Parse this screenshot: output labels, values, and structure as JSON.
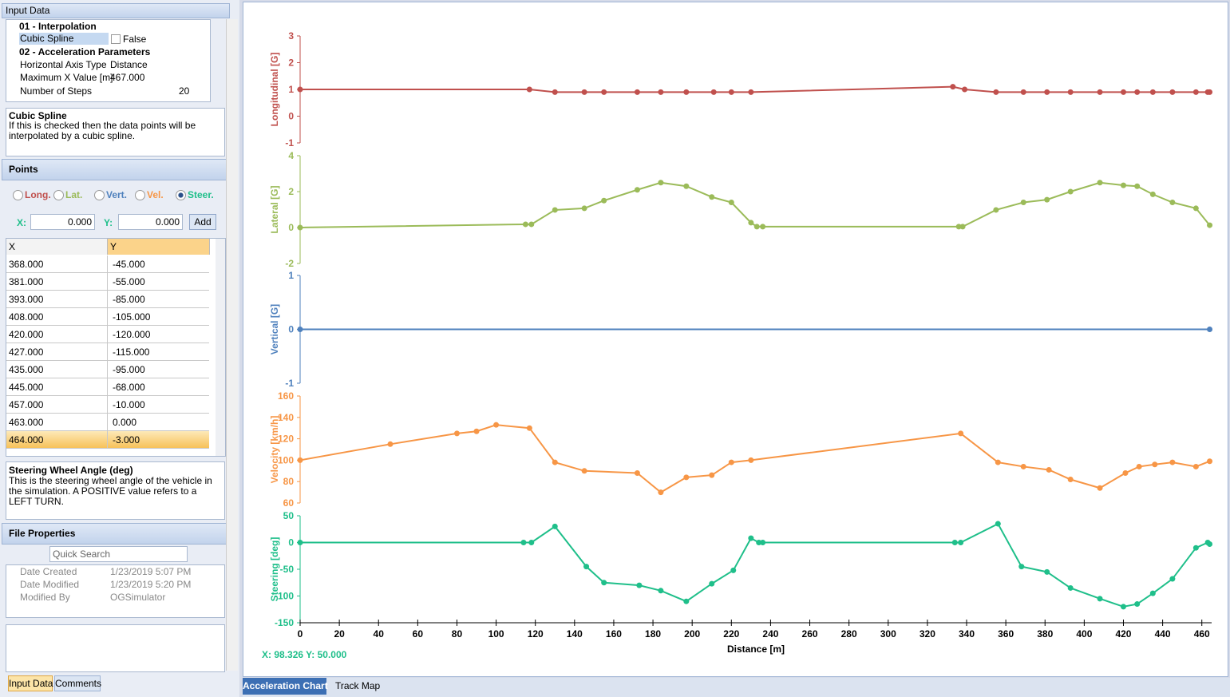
{
  "panel": {
    "title": "Input Data",
    "properties": {
      "section1": "01 - Interpolation",
      "cubic_label": "Cubic Spline",
      "cubic_value": "False",
      "section2": "02 - Acceleration Parameters",
      "axis_type_label": "Horizontal Axis Type",
      "axis_type_value": "Distance",
      "max_x_label": "Maximum X Value [m]",
      "max_x_value": "467.000",
      "steps_label": "Number of Steps",
      "steps_value": "20"
    },
    "desc1": {
      "title": "Cubic Spline",
      "text": "If this is checked then the data points will be interpolated by a cubic spline."
    },
    "points": {
      "title": "Points",
      "options": [
        "Long.",
        "Lat.",
        "Vert.",
        "Vel.",
        "Steer."
      ],
      "x_label": "X:",
      "x_value": "0.000",
      "y_label": "Y:",
      "y_value": "0.000",
      "add": "Add",
      "columns": [
        "X",
        "Y"
      ],
      "rows": [
        [
          "368.000",
          "-45.000"
        ],
        [
          "381.000",
          "-55.000"
        ],
        [
          "393.000",
          "-85.000"
        ],
        [
          "408.000",
          "-105.000"
        ],
        [
          "420.000",
          "-120.000"
        ],
        [
          "427.000",
          "-115.000"
        ],
        [
          "435.000",
          "-95.000"
        ],
        [
          "445.000",
          "-68.000"
        ],
        [
          "457.000",
          "-10.000"
        ],
        [
          "463.000",
          "0.000"
        ],
        [
          "464.000",
          "-3.000"
        ]
      ]
    },
    "desc2": {
      "title": "Steering Wheel Angle (deg)",
      "text": "This is the steering wheel angle of the vehicle in the simulation. A POSITIVE value refers to a LEFT TURN."
    },
    "file": {
      "title": "File Properties",
      "search": "Quick Search",
      "rows": [
        [
          "Date Created",
          "1/23/2019 5:07 PM"
        ],
        [
          "Date Modified",
          "1/23/2019 5:20 PM"
        ],
        [
          "Modified By",
          "OGSimulator"
        ]
      ]
    },
    "tabs": [
      "Input Data",
      "Comments"
    ]
  },
  "cursor_readout": "X: 98.326 Y: 50.000",
  "chart_tabs": [
    "Acceleration Chart",
    "Track Map"
  ],
  "chart_data": [
    {
      "type": "line",
      "y_label": "Longitudinal [G]",
      "color": "#c0504d",
      "ylim": [
        -1,
        3
      ],
      "yticks": [
        -1,
        0,
        1,
        2,
        3
      ],
      "x": [
        0,
        117,
        130,
        145,
        155,
        172,
        184,
        197,
        211,
        220,
        230,
        333,
        339,
        355,
        369,
        381,
        393,
        408,
        420,
        427,
        435,
        445,
        457,
        463,
        464
      ],
      "values": [
        1,
        1,
        0.9,
        0.9,
        0.9,
        0.9,
        0.9,
        0.9,
        0.9,
        0.9,
        0.9,
        1.1,
        1.0,
        0.9,
        0.9,
        0.9,
        0.9,
        0.9,
        0.9,
        0.9,
        0.9,
        0.9,
        0.9,
        0.9,
        0.9
      ]
    },
    {
      "type": "line",
      "y_label": "Lateral [G]",
      "color": "#9bbb59",
      "ylim": [
        -2,
        4
      ],
      "yticks": [
        -2,
        0,
        2,
        4
      ],
      "x": [
        0,
        115,
        118,
        130,
        145,
        155,
        172,
        184,
        197,
        210,
        220,
        230,
        233,
        236,
        336,
        338,
        355,
        369,
        381,
        393,
        408,
        420,
        427,
        435,
        445,
        457,
        464
      ],
      "values": [
        0,
        0.18,
        0.18,
        0.98,
        1.07,
        1.5,
        2.1,
        2.5,
        2.3,
        1.7,
        1.4,
        0.27,
        0.05,
        0.05,
        0.05,
        0.05,
        0.98,
        1.4,
        1.55,
        2.0,
        2.5,
        2.35,
        2.3,
        1.85,
        1.4,
        1.07,
        0.13
      ]
    },
    {
      "type": "line",
      "y_label": "Vertical [G]",
      "color": "#4f81bd",
      "ylim": [
        -1,
        1
      ],
      "yticks": [
        -1,
        0,
        1
      ],
      "x": [
        0,
        464
      ],
      "values": [
        0,
        0
      ]
    },
    {
      "type": "line",
      "y_label": "Velocity [km/h]",
      "color": "#f79646",
      "ylim": [
        60,
        160
      ],
      "yticks": [
        60,
        80,
        100,
        120,
        140,
        160
      ],
      "x": [
        0,
        46,
        80,
        90,
        100,
        117,
        130,
        145,
        172,
        184,
        197,
        210,
        220,
        230,
        337,
        356,
        369,
        382,
        393,
        408,
        421,
        428,
        436,
        445,
        457,
        464
      ],
      "values": [
        100,
        115,
        125,
        127,
        133,
        130,
        98,
        90,
        88,
        70,
        84,
        86,
        98,
        100,
        125,
        98,
        94,
        91,
        82,
        74,
        88,
        94,
        96,
        98,
        94,
        99
      ]
    },
    {
      "type": "line",
      "y_label": "Steering [deg]",
      "color": "#1fbf8a",
      "ylim": [
        -150,
        50
      ],
      "yticks": [
        -150,
        -100,
        -50,
        0,
        50
      ],
      "x_label": "Distance [m]",
      "xlim": [
        0,
        465
      ],
      "xticks": [
        0,
        20,
        40,
        60,
        80,
        100,
        120,
        140,
        160,
        180,
        200,
        220,
        240,
        260,
        280,
        300,
        320,
        340,
        360,
        380,
        400,
        420,
        440,
        460
      ],
      "x": [
        0,
        114,
        118,
        130,
        146,
        155,
        173,
        184,
        197,
        210,
        221,
        230,
        234,
        236,
        334,
        337,
        356,
        368,
        381,
        393,
        408,
        420,
        427,
        435,
        445,
        457,
        463,
        464
      ],
      "values": [
        0,
        0,
        0,
        30,
        -45,
        -75,
        -80,
        -90,
        -110,
        -77,
        -52,
        8,
        0,
        0,
        0,
        0,
        35,
        -45,
        -55,
        -85,
        -105,
        -120,
        -115,
        -95,
        -68,
        -10,
        0,
        -3
      ]
    }
  ]
}
